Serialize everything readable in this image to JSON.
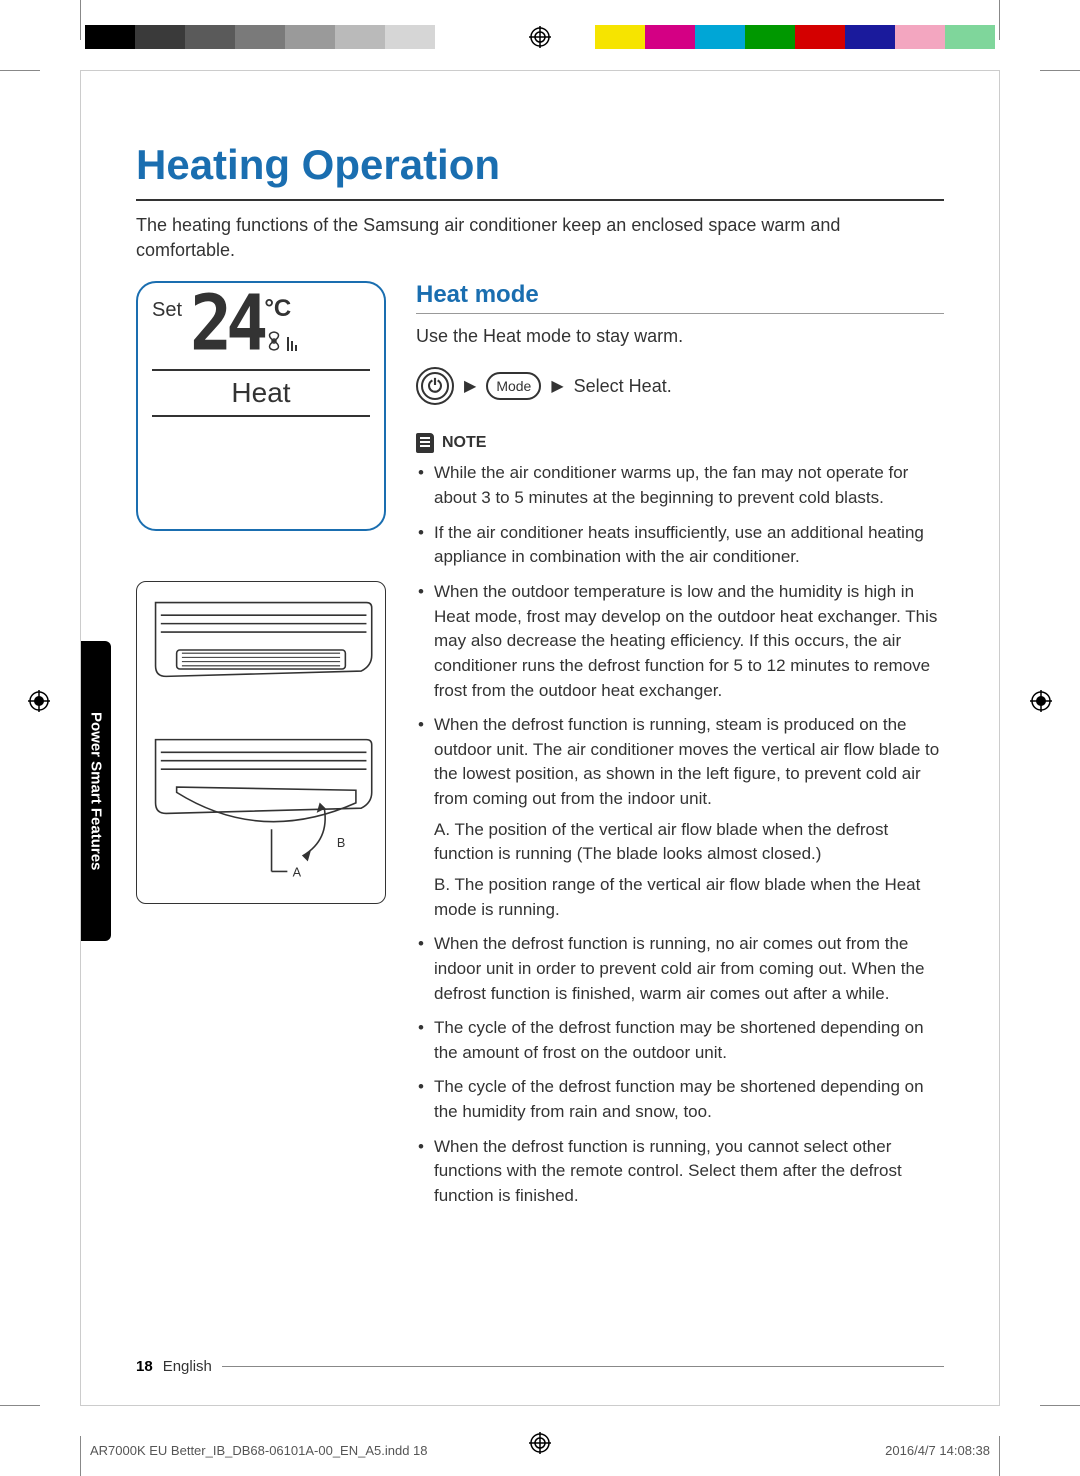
{
  "colorbar_left": [
    "#000000",
    "#3a3a3a",
    "#5a5a5a",
    "#7a7a7a",
    "#9a9a9a",
    "#bababa",
    "#d6d6d6"
  ],
  "colorbar_right": [
    "#f6e400",
    "#d40084",
    "#00a6d6",
    "#009800",
    "#d40000",
    "#1a1a9c",
    "#f3a6c0",
    "#7fd69b"
  ],
  "title": "Heating Operation",
  "intro": "The heating functions of the Samsung air conditioner keep an enclosed space warm and comfortable.",
  "remote": {
    "set": "Set",
    "temp": "24",
    "unit": "°C",
    "mode": "Heat"
  },
  "heat": {
    "heading": "Heat mode",
    "desc": "Use the Heat mode to stay warm.",
    "mode_button": "Mode",
    "select": "Select Heat."
  },
  "note_label": "NOTE",
  "notes": [
    "While the air conditioner warms up, the fan may not operate for about 3 to 5 minutes at the beginning to prevent cold blasts.",
    "If the air conditioner heats insufficiently, use an additional heating appliance in combination with the air conditioner.",
    "When the outdoor temperature is low and the humidity is high in Heat mode, frost may develop on the outdoor heat exchanger. This may also decrease the heating efficiency. If this occurs, the air conditioner runs the defrost function for 5 to 12 minutes to remove frost from the outdoor heat exchanger.",
    "When the defrost function is running, steam is produced on the outdoor unit. The air conditioner moves the vertical air flow blade to the lowest position, as shown in the left figure, to prevent cold air from coming out from the indoor unit.",
    "When the defrost function is running, no air comes out from the indoor unit in order to prevent cold air from coming out. When the defrost function is finished, warm air comes out after a while.",
    "The cycle of the defrost function may be shortened depending on the amount of frost on the outdoor unit.",
    "The cycle of the defrost function may be shortened depending on the humidity from rain and snow, too.",
    "When the defrost function is running, you cannot select other functions with the remote control. Select them after the defrost function is finished."
  ],
  "note4_subA": "A. The position of the vertical air flow blade when the defrost function is running (The blade looks almost closed.)",
  "note4_subB": "B. The position range of the vertical air flow blade when the Heat mode is running.",
  "fig_labels": {
    "a": "A",
    "b": "B"
  },
  "side_tab": "Power Smart Features",
  "footer": {
    "page": "18",
    "lang": "English"
  },
  "slug": {
    "file": "AR7000K EU Better_IB_DB68-06101A-00_EN_A5.indd   18",
    "stamp": "2016/4/7   14:08:38"
  }
}
